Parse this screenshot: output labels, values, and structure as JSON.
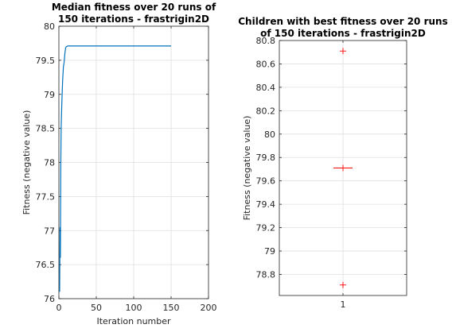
{
  "chart_data": [
    {
      "type": "line",
      "title": [
        "Median fitness over 20 runs of",
        "150 iterations - frastrigin2D"
      ],
      "xlabel": "Iteration number",
      "ylabel": "Fitness (negative value)",
      "xlim": [
        0,
        200
      ],
      "ylim": [
        76,
        80
      ],
      "xticks": [
        0,
        50,
        100,
        150,
        200
      ],
      "xtick_labels": [
        "0",
        "50",
        "100",
        "150",
        "200"
      ],
      "yticks": [
        76,
        76.5,
        77,
        77.5,
        78,
        78.5,
        79,
        79.5,
        80
      ],
      "ytick_labels": [
        "76",
        "76.5",
        "77",
        "77.5",
        "78",
        "78.5",
        "79",
        "79.5",
        "80"
      ],
      "grid": true,
      "line_color": "#0072bd",
      "series": [
        {
          "x": [
            1,
            1.5,
            2,
            2.5,
            3,
            4,
            5,
            6,
            7,
            8,
            9,
            10,
            12,
            15,
            20,
            30,
            50,
            100,
            150
          ],
          "y": [
            76.1,
            77.05,
            76.6,
            77.9,
            78.5,
            78.9,
            79.2,
            79.4,
            79.47,
            79.6,
            79.68,
            79.7,
            79.71,
            79.71,
            79.71,
            79.71,
            79.71,
            79.71,
            79.71
          ]
        }
      ]
    },
    {
      "type": "scatter",
      "title": [
        "Children with best fitness over 20 runs",
        "of 150 iterations - frastrigin2D"
      ],
      "xlabel": "",
      "ylabel": "Fitness (negative value)",
      "xlim": [
        0.5,
        1.5
      ],
      "ylim": [
        78.62,
        80.8
      ],
      "xticks": [
        1
      ],
      "xtick_labels": [
        "1"
      ],
      "yticks": [
        78.8,
        79,
        79.2,
        79.4,
        79.6,
        79.8,
        80,
        80.2,
        80.4,
        80.6,
        80.8
      ],
      "ytick_labels": [
        "78.8",
        "79",
        "79.2",
        "79.4",
        "79.6",
        "79.8",
        "80",
        "80.2",
        "80.4",
        "80.6",
        "80.8"
      ],
      "grid": true,
      "marker": "+",
      "marker_color": "#ff0000",
      "points": [
        {
          "x": 1,
          "y": 80.71
        },
        {
          "x": 1,
          "y": 79.71
        },
        {
          "x": 1,
          "y": 78.71
        }
      ]
    }
  ]
}
